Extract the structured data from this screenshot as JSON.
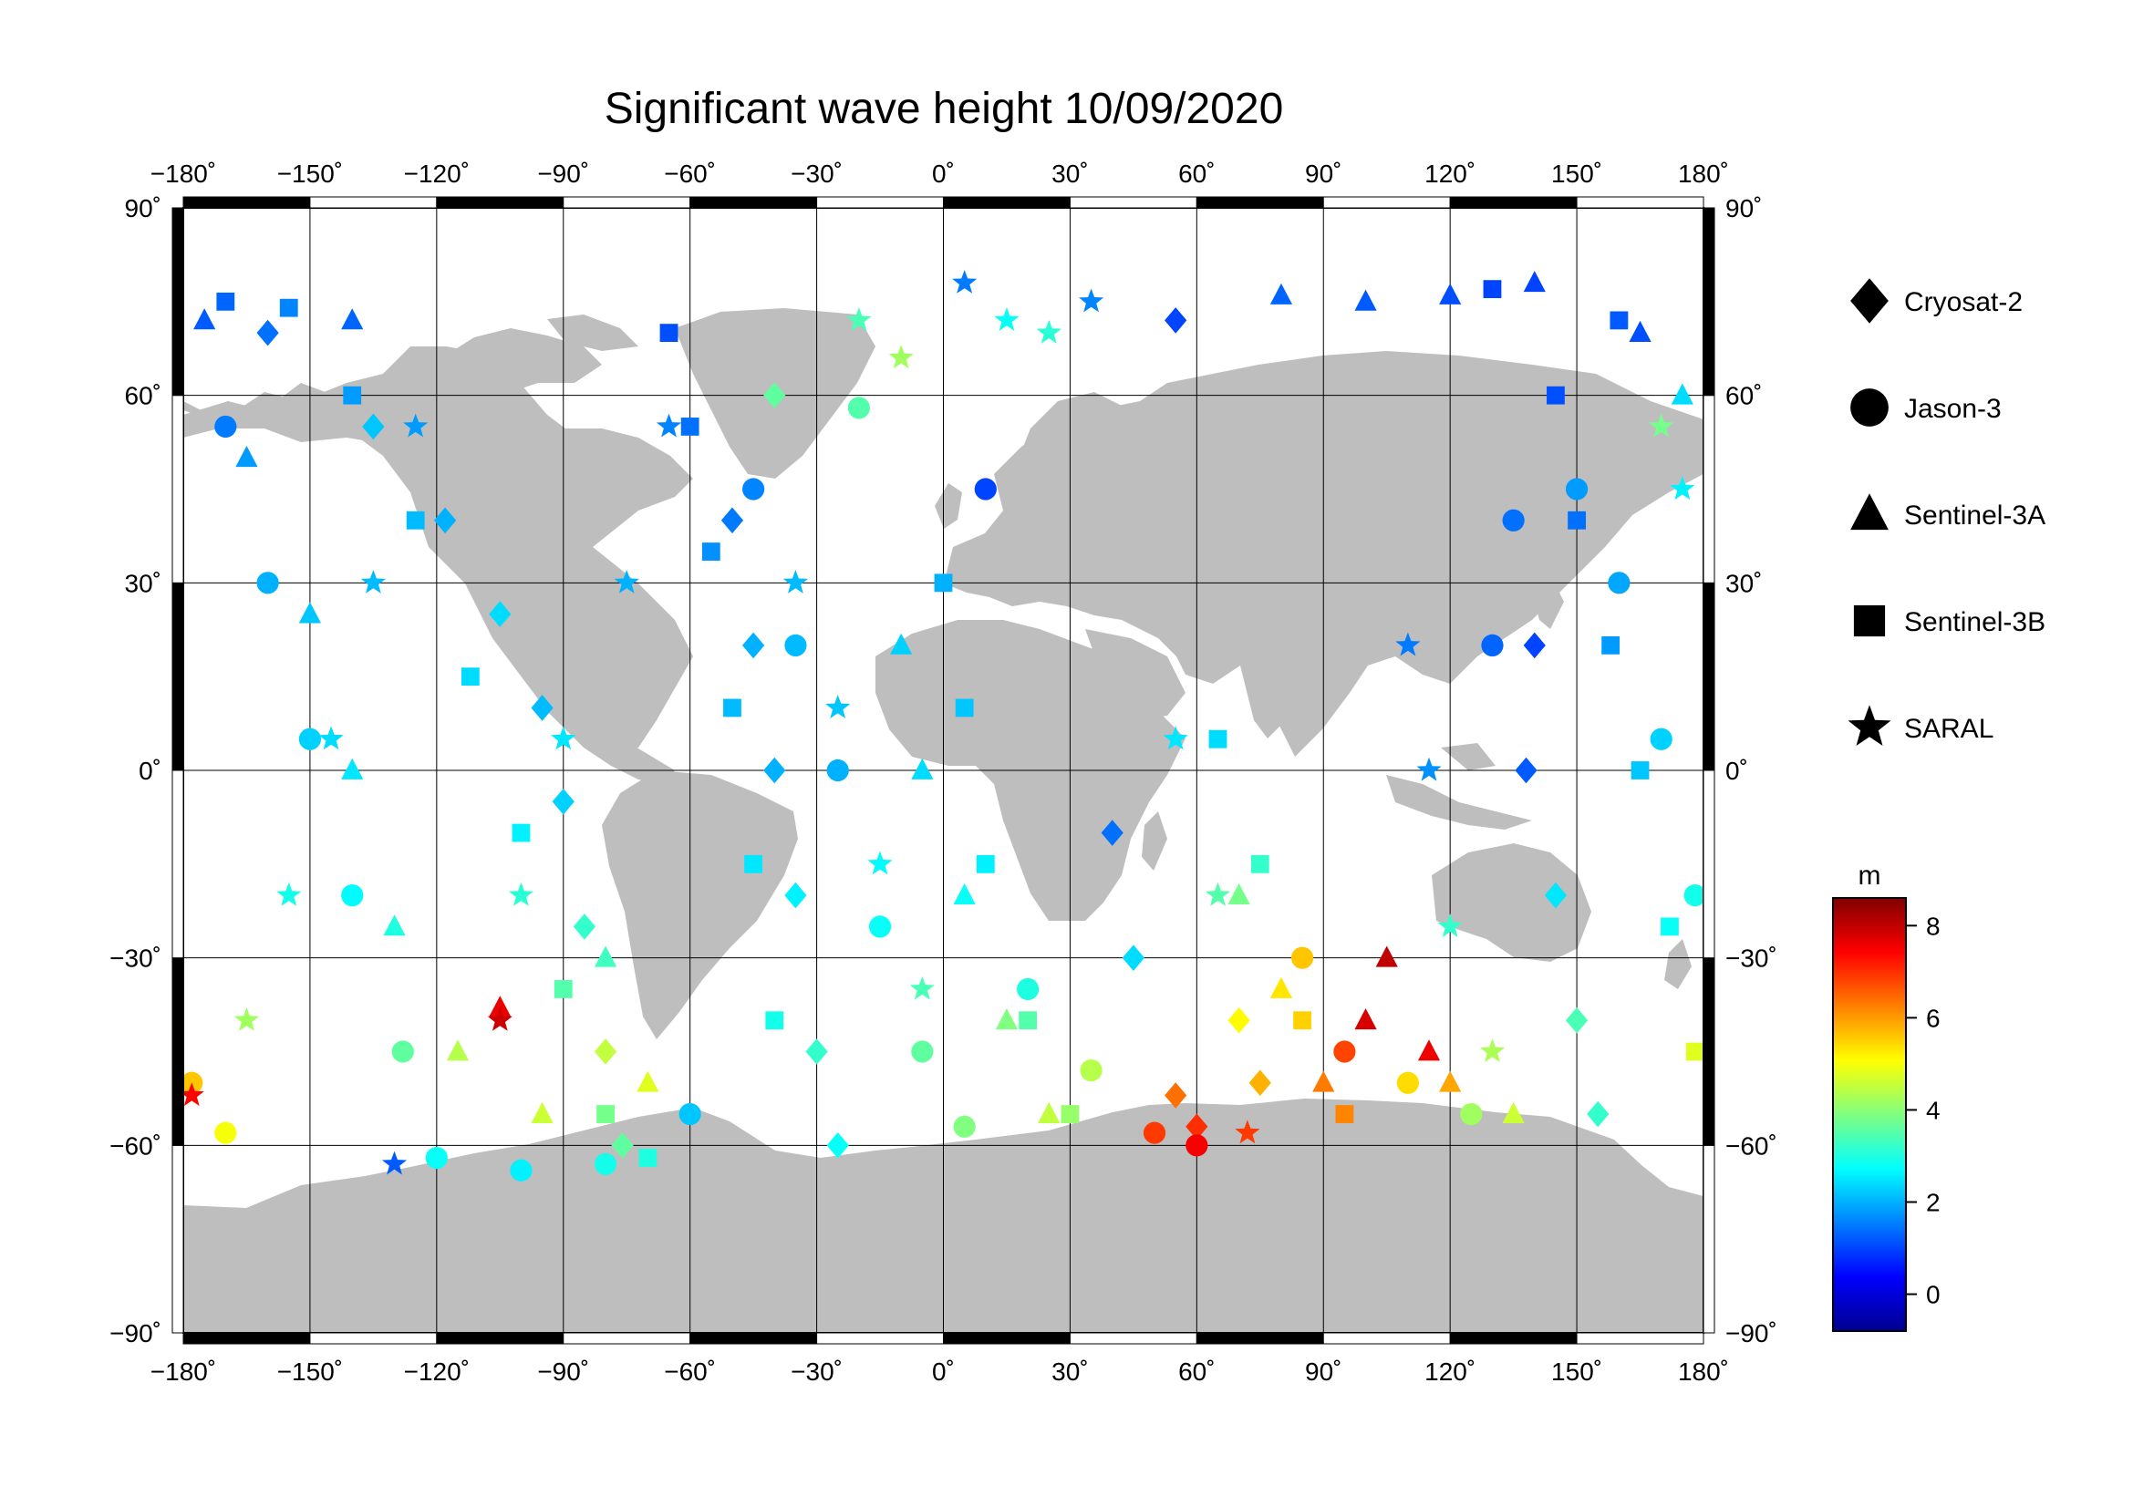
{
  "title": "Significant wave height 10/09/2020",
  "map": {
    "projection": "equirectangular",
    "lon_range": [
      -180,
      180
    ],
    "lat_range": [
      -90,
      90
    ],
    "lon_ticks": [
      -180,
      -150,
      -120,
      -90,
      -60,
      -30,
      0,
      30,
      60,
      90,
      120,
      150,
      180
    ],
    "lat_ticks": [
      -90,
      -60,
      -30,
      0,
      30,
      60,
      90
    ],
    "lon_tick_labels": [
      "−180˚",
      "−150˚",
      "−120˚",
      "−90˚",
      "−60˚",
      "−30˚",
      "0˚",
      "30˚",
      "60˚",
      "90˚",
      "120˚",
      "150˚",
      "180˚"
    ],
    "lat_tick_labels": [
      "−90˚",
      "−60˚",
      "−30˚",
      "0˚",
      "30˚",
      "60˚",
      "90˚"
    ],
    "land_color": "#bebebe",
    "ocean_color": "#ffffff",
    "grid": true
  },
  "legend": {
    "placement": "right",
    "items": [
      {
        "name": "Cryosat-2",
        "marker": "diamond"
      },
      {
        "name": "Jason-3",
        "marker": "circle"
      },
      {
        "name": "Sentinel-3A",
        "marker": "triangle"
      },
      {
        "name": "Sentinel-3B",
        "marker": "square"
      },
      {
        "name": "SARAL",
        "marker": "star"
      }
    ]
  },
  "colorbar": {
    "unit": "m",
    "range": [
      -0.8,
      8.6
    ],
    "ticks": [
      0,
      2,
      4,
      6,
      8
    ],
    "tick_labels": [
      "0",
      "2",
      "4",
      "6",
      "8"
    ],
    "colormap": "jet",
    "colors": [
      "#00008f",
      "#0000ff",
      "#0080ff",
      "#00ffff",
      "#80ff80",
      "#ffff00",
      "#ff8000",
      "#ff0000",
      "#800000"
    ]
  },
  "chart_data": {
    "type": "scatter",
    "title": "Significant wave height 10/09/2020",
    "xlabel": "",
    "ylabel": "",
    "xlim": [
      -180,
      180
    ],
    "ylim": [
      -90,
      90
    ],
    "value_unit": "m",
    "series": [
      {
        "name": "Cryosat-2",
        "marker": "diamond",
        "points": [
          [
            -160,
            70,
            1.4
          ],
          [
            -135,
            55,
            2.2
          ],
          [
            -118,
            40,
            2.0
          ],
          [
            -105,
            25,
            2.4
          ],
          [
            -95,
            10,
            2.1
          ],
          [
            -90,
            -5,
            2.3
          ],
          [
            -85,
            -25,
            3.2
          ],
          [
            -80,
            -45,
            4.5
          ],
          [
            -76,
            -60,
            3.6
          ],
          [
            -50,
            40,
            1.5
          ],
          [
            -45,
            20,
            2.0
          ],
          [
            -40,
            0,
            2.0
          ],
          [
            -35,
            -20,
            2.6
          ],
          [
            -30,
            -45,
            3.2
          ],
          [
            -25,
            -60,
            2.8
          ],
          [
            40,
            -10,
            1.4
          ],
          [
            45,
            -30,
            2.4
          ],
          [
            55,
            -52,
            6.4
          ],
          [
            60,
            -57,
            7.0
          ],
          [
            70,
            -40,
            5.1
          ],
          [
            75,
            -50,
            5.8
          ],
          [
            140,
            20,
            1.0
          ],
          [
            138,
            0,
            1.2
          ],
          [
            145,
            -20,
            2.5
          ],
          [
            150,
            -40,
            3.4
          ],
          [
            155,
            -55,
            3.2
          ],
          [
            -40,
            60,
            3.6
          ],
          [
            55,
            72,
            1.0
          ]
        ]
      },
      {
        "name": "Jason-3",
        "marker": "circle",
        "points": [
          [
            -170,
            55,
            1.5
          ],
          [
            -160,
            30,
            2.0
          ],
          [
            -150,
            5,
            2.3
          ],
          [
            -140,
            -20,
            2.7
          ],
          [
            -128,
            -45,
            3.6
          ],
          [
            -120,
            -62,
            2.8
          ],
          [
            -100,
            -64,
            2.6
          ],
          [
            -80,
            -63,
            2.9
          ],
          [
            -60,
            -55,
            2.2
          ],
          [
            -45,
            45,
            1.6
          ],
          [
            -35,
            20,
            2.1
          ],
          [
            -25,
            0,
            2.0
          ],
          [
            -15,
            -25,
            2.8
          ],
          [
            -5,
            -45,
            3.6
          ],
          [
            5,
            -57,
            3.9
          ],
          [
            10,
            45,
            1.0
          ],
          [
            20,
            -35,
            3.0
          ],
          [
            35,
            -48,
            4.4
          ],
          [
            50,
            -58,
            6.9
          ],
          [
            60,
            -60,
            7.5
          ],
          [
            85,
            -30,
            5.6
          ],
          [
            95,
            -45,
            6.8
          ],
          [
            110,
            -50,
            5.4
          ],
          [
            125,
            -55,
            4.2
          ],
          [
            130,
            20,
            1.3
          ],
          [
            135,
            40,
            1.4
          ],
          [
            150,
            45,
            1.8
          ],
          [
            160,
            30,
            1.9
          ],
          [
            170,
            5,
            2.3
          ],
          [
            178,
            -20,
            2.9
          ],
          [
            -178,
            -50,
            5.6
          ],
          [
            -170,
            -58,
            5.0
          ],
          [
            -20,
            58,
            3.5
          ]
        ]
      },
      {
        "name": "Sentinel-3A",
        "marker": "triangle",
        "points": [
          [
            -175,
            72,
            1.2
          ],
          [
            -165,
            50,
            1.8
          ],
          [
            -150,
            25,
            2.2
          ],
          [
            -140,
            0,
            2.5
          ],
          [
            -130,
            -25,
            3.0
          ],
          [
            -115,
            -45,
            4.4
          ],
          [
            -105,
            -38,
            7.6
          ],
          [
            -95,
            -55,
            4.6
          ],
          [
            -80,
            -30,
            3.3
          ],
          [
            -70,
            -50,
            4.8
          ],
          [
            -10,
            20,
            2.3
          ],
          [
            -5,
            0,
            2.4
          ],
          [
            5,
            -20,
            2.8
          ],
          [
            15,
            -40,
            3.9
          ],
          [
            25,
            -55,
            4.5
          ],
          [
            70,
            -20,
            3.8
          ],
          [
            80,
            -35,
            5.3
          ],
          [
            90,
            -50,
            6.3
          ],
          [
            100,
            -40,
            7.8
          ],
          [
            105,
            -30,
            8.0
          ],
          [
            115,
            -45,
            7.6
          ],
          [
            120,
            -50,
            5.9
          ],
          [
            135,
            -55,
            4.6
          ],
          [
            140,
            78,
            1.0
          ],
          [
            120,
            76,
            1.1
          ],
          [
            100,
            75,
            1.2
          ],
          [
            80,
            76,
            1.3
          ],
          [
            -140,
            72,
            1.3
          ],
          [
            165,
            70,
            1.1
          ],
          [
            175,
            60,
            2.4
          ]
        ]
      },
      {
        "name": "Sentinel-3B",
        "marker": "square",
        "points": [
          [
            -170,
            75,
            1.3
          ],
          [
            -155,
            74,
            1.6
          ],
          [
            -140,
            60,
            1.8
          ],
          [
            -125,
            40,
            2.1
          ],
          [
            -112,
            15,
            2.4
          ],
          [
            -100,
            -10,
            2.6
          ],
          [
            -90,
            -35,
            3.5
          ],
          [
            -80,
            -55,
            3.8
          ],
          [
            -70,
            -62,
            3.0
          ],
          [
            -65,
            70,
            1.1
          ],
          [
            -60,
            55,
            1.4
          ],
          [
            -55,
            35,
            1.7
          ],
          [
            -50,
            10,
            2.1
          ],
          [
            -45,
            -15,
            2.5
          ],
          [
            -40,
            -40,
            2.9
          ],
          [
            0,
            30,
            2.0
          ],
          [
            5,
            10,
            2.2
          ],
          [
            10,
            -15,
            2.6
          ],
          [
            20,
            -40,
            3.5
          ],
          [
            30,
            -55,
            4.1
          ],
          [
            65,
            5,
            2.4
          ],
          [
            75,
            -15,
            3.2
          ],
          [
            85,
            -40,
            5.5
          ],
          [
            95,
            -55,
            6.2
          ],
          [
            145,
            60,
            1.1
          ],
          [
            150,
            40,
            1.4
          ],
          [
            158,
            20,
            1.8
          ],
          [
            165,
            0,
            2.2
          ],
          [
            172,
            -25,
            2.8
          ],
          [
            178,
            -45,
            4.8
          ],
          [
            130,
            77,
            1.0
          ],
          [
            160,
            72,
            1.2
          ]
        ]
      },
      {
        "name": "SARAL",
        "marker": "star",
        "points": [
          [
            -178,
            -52,
            7.4
          ],
          [
            -165,
            -40,
            4.2
          ],
          [
            -155,
            -20,
            2.9
          ],
          [
            -145,
            5,
            2.4
          ],
          [
            -135,
            30,
            2.1
          ],
          [
            -125,
            55,
            1.8
          ],
          [
            -105,
            -40,
            7.9
          ],
          [
            -100,
            -20,
            3.1
          ],
          [
            -90,
            5,
            2.5
          ],
          [
            -75,
            30,
            2.0
          ],
          [
            -65,
            55,
            1.6
          ],
          [
            -35,
            30,
            2.1
          ],
          [
            -25,
            10,
            2.2
          ],
          [
            -15,
            -15,
            2.7
          ],
          [
            -5,
            -35,
            3.4
          ],
          [
            5,
            78,
            1.5
          ],
          [
            15,
            72,
            2.8
          ],
          [
            25,
            70,
            3.1
          ],
          [
            -20,
            72,
            3.4
          ],
          [
            -10,
            66,
            4.2
          ],
          [
            35,
            75,
            1.6
          ],
          [
            55,
            5,
            2.5
          ],
          [
            65,
            -20,
            3.5
          ],
          [
            72,
            -58,
            6.9
          ],
          [
            110,
            20,
            1.5
          ],
          [
            115,
            0,
            1.7
          ],
          [
            120,
            -25,
            3.2
          ],
          [
            130,
            -45,
            4.3
          ],
          [
            170,
            55,
            3.8
          ],
          [
            175,
            45,
            2.6
          ],
          [
            -130,
            -63,
            1.2
          ]
        ]
      }
    ]
  }
}
